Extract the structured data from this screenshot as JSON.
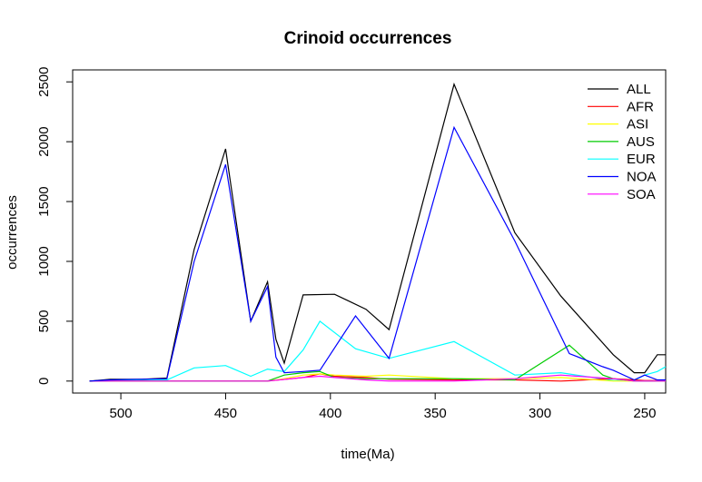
{
  "chart_data": {
    "type": "line",
    "title": "Crinoid occurrences",
    "xlabel": "time(Ma)",
    "ylabel": "occurrences",
    "xlim": [
      523,
      240
    ],
    "ylim": [
      -100,
      2600
    ],
    "x_reversed": true,
    "x_ticks": [
      500,
      450,
      400,
      350,
      300,
      250
    ],
    "y_ticks": [
      0,
      500,
      1000,
      1500,
      2000,
      2500
    ],
    "legend_position": "top-right",
    "grid": false,
    "series": [
      {
        "name": "ALL",
        "color": "#000000",
        "points": [
          [
            515,
            0
          ],
          [
            505,
            15
          ],
          [
            490,
            15
          ],
          [
            478,
            25
          ],
          [
            465,
            1100
          ],
          [
            450,
            1940
          ],
          [
            438,
            500
          ],
          [
            430,
            830
          ],
          [
            426,
            350
          ],
          [
            422,
            150
          ],
          [
            413,
            720
          ],
          [
            398,
            725
          ],
          [
            383,
            600
          ],
          [
            372,
            430
          ],
          [
            341,
            2480
          ],
          [
            312,
            1240
          ],
          [
            290,
            710
          ],
          [
            265,
            220
          ],
          [
            255,
            70
          ],
          [
            250,
            70
          ],
          [
            244,
            220
          ],
          [
            240,
            220
          ]
        ]
      },
      {
        "name": "AFR",
        "color": "#ff0000",
        "points": [
          [
            515,
            0
          ],
          [
            478,
            0
          ],
          [
            430,
            0
          ],
          [
            413,
            30
          ],
          [
            405,
            60
          ],
          [
            398,
            40
          ],
          [
            383,
            30
          ],
          [
            372,
            15
          ],
          [
            341,
            10
          ],
          [
            312,
            10
          ],
          [
            290,
            0
          ],
          [
            265,
            20
          ],
          [
            255,
            10
          ],
          [
            250,
            5
          ],
          [
            240,
            5
          ]
        ]
      },
      {
        "name": "ASI",
        "color": "#ffff00",
        "points": [
          [
            515,
            0
          ],
          [
            478,
            0
          ],
          [
            430,
            0
          ],
          [
            422,
            20
          ],
          [
            413,
            50
          ],
          [
            405,
            60
          ],
          [
            398,
            50
          ],
          [
            383,
            40
          ],
          [
            372,
            50
          ],
          [
            341,
            20
          ],
          [
            312,
            20
          ],
          [
            290,
            30
          ],
          [
            265,
            0
          ],
          [
            255,
            0
          ],
          [
            240,
            0
          ]
        ]
      },
      {
        "name": "AUS",
        "color": "#00cc00",
        "points": [
          [
            515,
            0
          ],
          [
            478,
            0
          ],
          [
            430,
            0
          ],
          [
            422,
            50
          ],
          [
            413,
            70
          ],
          [
            405,
            80
          ],
          [
            398,
            30
          ],
          [
            383,
            20
          ],
          [
            372,
            20
          ],
          [
            341,
            20
          ],
          [
            312,
            10
          ],
          [
            286,
            300
          ],
          [
            270,
            50
          ],
          [
            265,
            20
          ],
          [
            255,
            0
          ],
          [
            240,
            0
          ]
        ]
      },
      {
        "name": "EUR",
        "color": "#00ffff",
        "points": [
          [
            515,
            0
          ],
          [
            490,
            10
          ],
          [
            478,
            10
          ],
          [
            465,
            110
          ],
          [
            450,
            130
          ],
          [
            438,
            40
          ],
          [
            430,
            100
          ],
          [
            422,
            80
          ],
          [
            413,
            260
          ],
          [
            405,
            500
          ],
          [
            388,
            270
          ],
          [
            372,
            190
          ],
          [
            341,
            330
          ],
          [
            312,
            50
          ],
          [
            290,
            70
          ],
          [
            265,
            5
          ],
          [
            255,
            5
          ],
          [
            250,
            50
          ],
          [
            244,
            80
          ],
          [
            240,
            120
          ]
        ]
      },
      {
        "name": "NOA",
        "color": "#0000ff",
        "points": [
          [
            515,
            0
          ],
          [
            505,
            10
          ],
          [
            490,
            15
          ],
          [
            478,
            20
          ],
          [
            465,
            1000
          ],
          [
            450,
            1810
          ],
          [
            438,
            500
          ],
          [
            430,
            790
          ],
          [
            426,
            200
          ],
          [
            422,
            70
          ],
          [
            413,
            80
          ],
          [
            405,
            90
          ],
          [
            388,
            545
          ],
          [
            372,
            190
          ],
          [
            341,
            2120
          ],
          [
            312,
            1170
          ],
          [
            286,
            230
          ],
          [
            270,
            120
          ],
          [
            265,
            90
          ],
          [
            255,
            10
          ],
          [
            250,
            50
          ],
          [
            244,
            10
          ],
          [
            240,
            10
          ]
        ]
      },
      {
        "name": "SOA",
        "color": "#ff00ff",
        "points": [
          [
            515,
            0
          ],
          [
            478,
            0
          ],
          [
            430,
            0
          ],
          [
            413,
            30
          ],
          [
            405,
            40
          ],
          [
            398,
            30
          ],
          [
            383,
            10
          ],
          [
            372,
            0
          ],
          [
            341,
            0
          ],
          [
            312,
            20
          ],
          [
            290,
            50
          ],
          [
            265,
            20
          ],
          [
            255,
            0
          ],
          [
            240,
            0
          ]
        ]
      }
    ]
  }
}
